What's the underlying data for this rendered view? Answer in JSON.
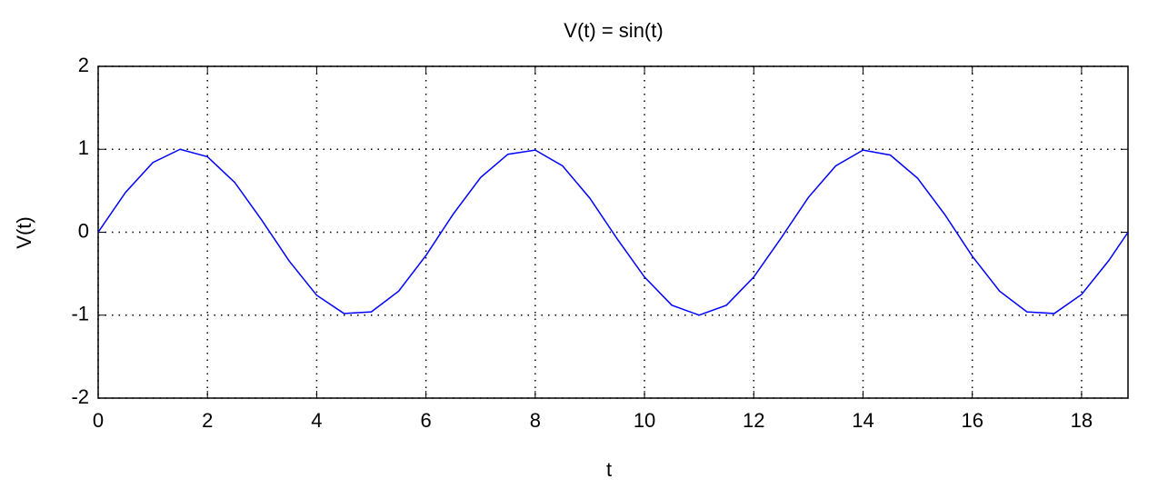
{
  "chart_data": {
    "type": "line",
    "title": "V(t) = sin(t)",
    "x_label": "t",
    "y_label": "V(t)",
    "x": [
      0,
      0.5,
      1,
      1.5,
      2,
      2.5,
      3,
      3.5,
      4,
      4.5,
      5,
      5.5,
      6,
      6.5,
      7,
      7.5,
      8,
      8.5,
      9,
      9.5,
      10,
      10.5,
      11,
      11.5,
      12,
      12.5,
      13,
      13.5,
      14,
      14.5,
      15,
      15.5,
      16,
      16.5,
      17,
      17.5,
      18,
      18.5,
      18.85
    ],
    "series": [
      {
        "color": "#0000ff",
        "values": [
          0,
          0.48,
          0.84,
          1.0,
          0.91,
          0.6,
          0.14,
          -0.35,
          -0.76,
          -0.98,
          -0.96,
          -0.71,
          -0.28,
          0.22,
          0.66,
          0.94,
          0.99,
          0.8,
          0.41,
          -0.08,
          -0.54,
          -0.88,
          -1.0,
          -0.88,
          -0.54,
          -0.07,
          0.42,
          0.8,
          0.99,
          0.93,
          0.65,
          0.21,
          -0.29,
          -0.71,
          -0.96,
          -0.98,
          -0.75,
          -0.34,
          0.0
        ]
      }
    ],
    "xlim": [
      0,
      18.85
    ],
    "xticks": [
      0,
      2,
      4,
      6,
      8,
      10,
      12,
      14,
      16,
      18
    ],
    "ylim": [
      -2,
      2
    ],
    "yticks": [
      -2,
      -1,
      0,
      1,
      2
    ],
    "grid": true
  }
}
